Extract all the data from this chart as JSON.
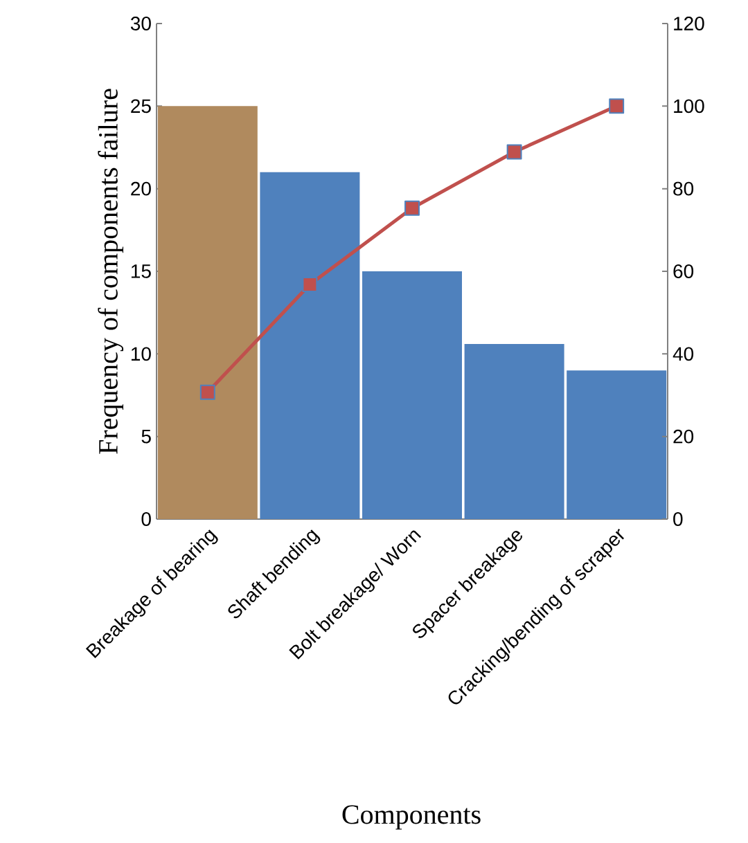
{
  "chart_data": {
    "type": "bar",
    "xlabel": "Components",
    "ylabel": "Frequency of components failure",
    "categories": [
      "Breakage of bearing",
      "Shaft bending",
      "Bolt breakage/ Worn",
      "Spacer breakage",
      "Cracking/bending of scraper"
    ],
    "series": [
      {
        "colors": [
          "#b08a5e",
          "#4f81bd",
          "#4f81bd",
          "#4f81bd",
          "#4f81bd"
        ],
        "values": [
          25,
          21,
          15,
          10.6,
          9
        ]
      },
      {
        "type": "line",
        "axis": "y2",
        "color": "#c0504d",
        "values": [
          30.7,
          56.8,
          75.3,
          88.9,
          100
        ]
      }
    ],
    "ylim": [
      0,
      30
    ],
    "yticks": [
      0,
      5,
      10,
      15,
      20,
      25,
      30
    ],
    "y2lim": [
      0,
      120
    ],
    "y2ticks": [
      0,
      20,
      40,
      60,
      80,
      100,
      120
    ],
    "grid": false,
    "marker": "square"
  }
}
